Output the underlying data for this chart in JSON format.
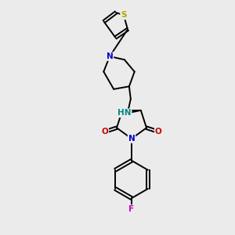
{
  "background_color": "#ebebeb",
  "atom_colors": {
    "C": "#000000",
    "N": "#0000cc",
    "O": "#cc0000",
    "F": "#cc00cc",
    "S": "#aaaa00",
    "NH": "#008888"
  },
  "figsize": [
    3.0,
    3.0
  ],
  "dpi": 100
}
